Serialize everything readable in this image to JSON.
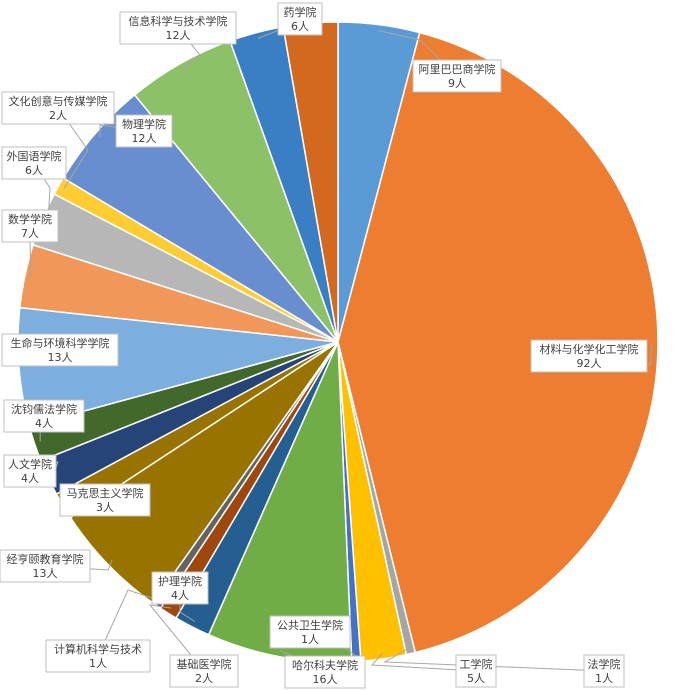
{
  "chart_data": {
    "type": "pie",
    "title": "",
    "unit_suffix": "人",
    "slices": [
      {
        "name": "阿里巴巴商学院",
        "value": 9,
        "value_label": "9人",
        "color": "#5b9bd5"
      },
      {
        "name": "材料与化学化工学院",
        "value": 92,
        "value_label": "92人",
        "color": "#ed7d31"
      },
      {
        "name": "法学院",
        "value": 1,
        "value_label": "1人",
        "color": "#a5a5a5"
      },
      {
        "name": "工学院",
        "value": 5,
        "value_label": "5人",
        "color": "#ffc000"
      },
      {
        "name": "公共卫生学院",
        "value": 1,
        "value_label": "1人",
        "color": "#4472c4"
      },
      {
        "name": "哈尔科夫学院",
        "value": 16,
        "value_label": "16人",
        "color": "#70ad47"
      },
      {
        "name": "护理学院",
        "value": 4,
        "value_label": "4人",
        "color": "#255e91"
      },
      {
        "name": "基础医学院",
        "value": 2,
        "value_label": "2人",
        "color": "#9e480e"
      },
      {
        "name": "计算机科学与技术",
        "value": 1,
        "value_label": "1人",
        "color": "#636363"
      },
      {
        "name": "经亨颐教育学院",
        "value": 13,
        "value_label": "13人",
        "color": "#997300"
      },
      {
        "name": "马克思主义学院",
        "value": 3,
        "value_label": "3人",
        "color": "#997300"
      },
      {
        "name": "人文学院",
        "value": 4,
        "value_label": "4人",
        "color": "#264478"
      },
      {
        "name": "沈钧儒法学院",
        "value": 4,
        "value_label": "4人",
        "color": "#43682b"
      },
      {
        "name": "生命与环境科学学院",
        "value": 13,
        "value_label": "13人",
        "color": "#7cafdd"
      },
      {
        "name": "数学学院",
        "value": 7,
        "value_label": "7人",
        "color": "#f1975a"
      },
      {
        "name": "外国语学院",
        "value": 6,
        "value_label": "6人",
        "color": "#b7b7b7"
      },
      {
        "name": "文化创意与传媒学院",
        "value": 2,
        "value_label": "2人",
        "color": "#ffcd33"
      },
      {
        "name": "物理学院",
        "value": 12,
        "value_label": "12人",
        "color": "#698ed0"
      },
      {
        "name": "信息科学与技术学院",
        "value": 12,
        "value_label": "12人",
        "color": "#8cc168"
      },
      {
        "name": "药学院",
        "value": 6,
        "value_label": "6人",
        "color": "#3a7fc4"
      },
      {
        "name": "",
        "value": 6,
        "value_label": "",
        "color": "#d2691e"
      }
    ],
    "legend": "none",
    "grid": false
  }
}
